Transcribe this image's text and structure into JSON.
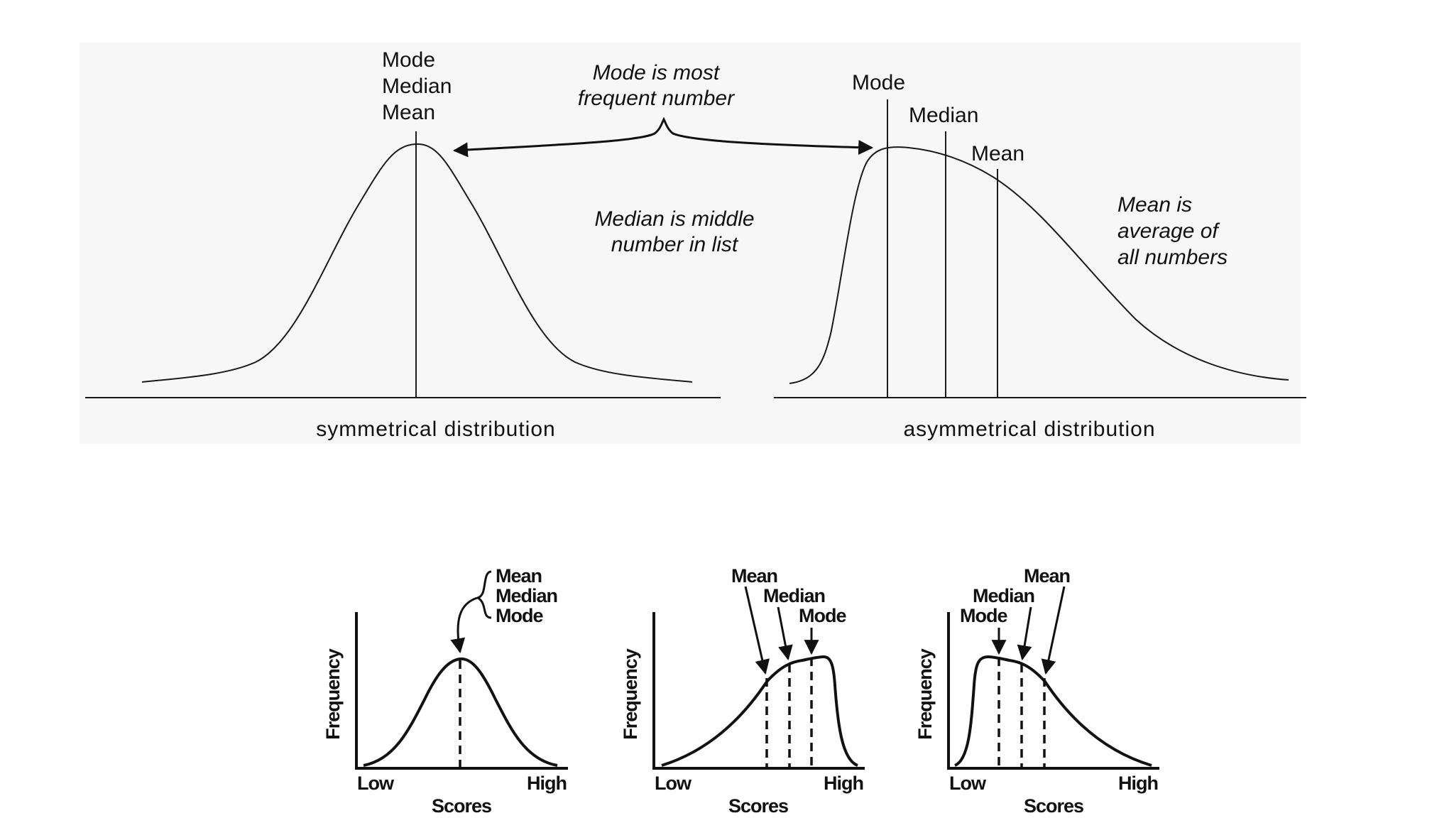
{
  "top": {
    "symmetric": {
      "labels": [
        "Mode",
        "Median",
        "Mean"
      ],
      "caption": "symmetrical distribution"
    },
    "asymmetric": {
      "mode_label": "Mode",
      "median_label": "Median",
      "mean_label": "Mean",
      "caption": "asymmetrical distribution"
    },
    "annotations": {
      "mode_note": [
        "Mode is most",
        "frequent number"
      ],
      "median_note": [
        "Median is middle",
        "number in list"
      ],
      "mean_note": [
        "Mean is",
        "average of",
        "all numbers"
      ]
    }
  },
  "bottom": {
    "symmetric": {
      "labels": [
        "Mean",
        "Median",
        "Mode"
      ],
      "ylabel": "Frequency",
      "x_low": "Low",
      "x_high": "High",
      "xlabel": "Scores"
    },
    "negative_skew": {
      "mean_label": "Mean",
      "median_label": "Median",
      "mode_label": "Mode",
      "ylabel": "Frequency",
      "x_low": "Low",
      "x_high": "High",
      "xlabel": "Scores"
    },
    "positive_skew": {
      "mean_label": "Mean",
      "median_label": "Median",
      "mode_label": "Mode",
      "ylabel": "Frequency",
      "x_low": "Low",
      "x_high": "High",
      "xlabel": "Scores"
    }
  }
}
